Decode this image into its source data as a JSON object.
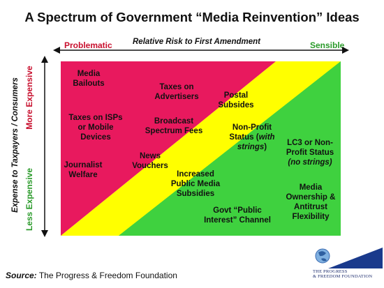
{
  "title": "A Spectrum of Government  “Media Reinvention” Ideas",
  "top_axis": {
    "left_label": "Problematic",
    "center_label": "Relative Risk to First Amendment",
    "right_label": "Sensible"
  },
  "side_axis": {
    "outer_label": "Expense to Taxpayers / Consumers",
    "top_label": "More Expensive",
    "bottom_label": "Less Expensive"
  },
  "colors": {
    "red_zone": "#e8195e",
    "yellow_zone": "#ffff00",
    "green_zone": "#3fd13f"
  },
  "ideas": [
    {
      "lines": [
        "Media",
        "Bailouts"
      ]
    },
    {
      "lines": [
        "Taxes on",
        "Advertisers"
      ]
    },
    {
      "lines": [
        "Postal",
        "Subsides"
      ]
    },
    {
      "lines": [
        "Taxes on ISPs",
        "or Mobile",
        "Devices"
      ]
    },
    {
      "lines": [
        "Broadcast",
        "Spectrum Fees"
      ]
    },
    {
      "lines": [
        "Non-Profit"
      ],
      "extra_plain": "Status (",
      "extra_italic": "with strings",
      "extra_close": ")",
      "italic_line2": "strings)"
    },
    {
      "lines": [
        "News",
        "Vouchers"
      ]
    },
    {
      "lines": [
        "Journalist",
        "Welfare"
      ]
    },
    {
      "lines": [
        "LC3 or Non-",
        "Profit Status"
      ],
      "italic_line": "(no strings)"
    },
    {
      "lines": [
        "Increased",
        "Public Media",
        "Subsidies"
      ]
    },
    {
      "lines": [
        "Media",
        "Ownership &",
        "Antitrust",
        "Flexibility"
      ]
    },
    {
      "lines": [
        "Govt “Public",
        "Interest” Channel"
      ]
    }
  ],
  "source": {
    "label": "Source:",
    "text": "The Progress & Freedom Foundation"
  },
  "logo": {
    "line1": "THE PROGRESS",
    "line2": "& FREEDOM FOUNDATION"
  }
}
